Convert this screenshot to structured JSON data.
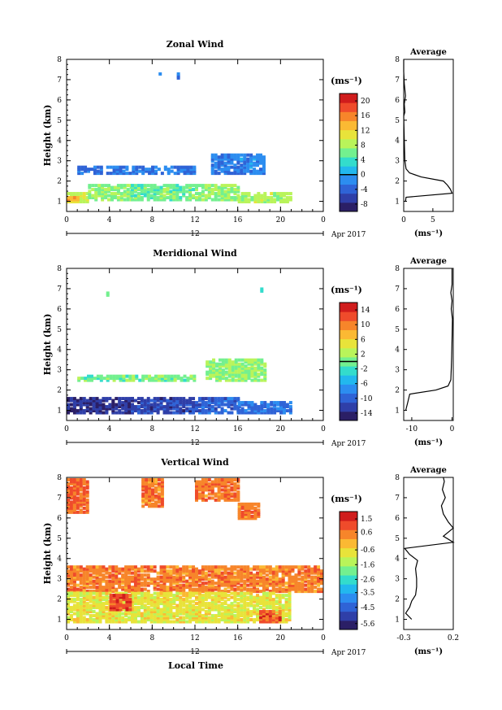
{
  "figure": {
    "xlabel": "Local Time",
    "date_label": "Apr 2017",
    "date_tick": "12"
  },
  "chart_data": [
    {
      "type": "heatmap",
      "title": "Zonal Wind",
      "ylabel": "Height (km)",
      "xlabel": "Local Time",
      "x_ticks": [
        "0",
        "4",
        "8",
        "12",
        "16",
        "20",
        "0"
      ],
      "xlim": [
        0,
        24
      ],
      "y_ticks": [
        "1",
        "2",
        "3",
        "4",
        "5",
        "6",
        "7",
        "8"
      ],
      "ylim": [
        0.5,
        8
      ],
      "colorbar": {
        "label": "(ms⁻¹)",
        "ticks": [
          "-8",
          "-4",
          "0",
          "4",
          "8",
          "12",
          "16",
          "20"
        ],
        "range": [
          -10,
          22
        ],
        "zero_line": 0
      },
      "profile": {
        "title": "Average",
        "xlabel": "(ms⁻¹)",
        "x_ticks": [
          "0",
          "5"
        ],
        "xlim": [
          0,
          8.5
        ],
        "points": [
          [
            0.3,
            1.0
          ],
          [
            0.4,
            1.2
          ],
          [
            8.3,
            1.4
          ],
          [
            8.0,
            1.6
          ],
          [
            7.5,
            1.8
          ],
          [
            6.8,
            2.0
          ],
          [
            3.0,
            2.2
          ],
          [
            1.0,
            2.4
          ],
          [
            0.4,
            2.6
          ],
          [
            0.2,
            3.0
          ],
          [
            0.1,
            4.0
          ],
          [
            0.0,
            5.2
          ],
          [
            0.2,
            5.4
          ],
          [
            0.1,
            5.8
          ],
          [
            0.3,
            6.2
          ],
          [
            0.1,
            6.8
          ],
          [
            0.0,
            7.4
          ],
          [
            0.0,
            8.0
          ]
        ]
      },
      "regions": [
        {
          "x0": 0,
          "x1": 2,
          "y0": 0.9,
          "y1": 1.4,
          "v": 9
        },
        {
          "x0": 0,
          "x1": 1,
          "y0": 0.9,
          "y1": 1.2,
          "v": 13
        },
        {
          "x0": 2,
          "x1": 6,
          "y0": 1.0,
          "y1": 1.8,
          "v": 7
        },
        {
          "x0": 6,
          "x1": 12,
          "y0": 1.0,
          "y1": 1.8,
          "v": 6
        },
        {
          "x0": 12,
          "x1": 16,
          "y0": 1.0,
          "y1": 1.8,
          "v": 7
        },
        {
          "x0": 16,
          "x1": 21,
          "y0": 0.9,
          "y1": 1.4,
          "v": 8
        },
        {
          "x0": 1,
          "x1": 12,
          "y0": 2.3,
          "y1": 2.7,
          "v": -3
        },
        {
          "x0": 13.5,
          "x1": 18.5,
          "y0": 2.3,
          "y1": 3.3,
          "v": -2
        },
        {
          "x0": 8.6,
          "x1": 8.8,
          "y0": 7.2,
          "y1": 7.3,
          "v": -2
        },
        {
          "x0": 10.3,
          "x1": 10.5,
          "y0": 7.0,
          "y1": 7.2,
          "v": -2
        }
      ]
    },
    {
      "type": "heatmap",
      "title": "Meridional Wind",
      "ylabel": "Height (km)",
      "xlabel": "Local Time",
      "x_ticks": [
        "0",
        "4",
        "8",
        "12",
        "16",
        "20",
        "0"
      ],
      "xlim": [
        0,
        24
      ],
      "y_ticks": [
        "1",
        "2",
        "3",
        "4",
        "5",
        "6",
        "7",
        "8"
      ],
      "ylim": [
        0.5,
        8
      ],
      "colorbar": {
        "label": "(ms⁻¹)",
        "ticks": [
          "-14",
          "-10",
          "-6",
          "-2",
          "2",
          "6",
          "10",
          "14"
        ],
        "range": [
          -16,
          16
        ],
        "zero_line": 0
      },
      "profile": {
        "title": "Average",
        "xlabel": "(ms⁻¹)",
        "x_ticks": [
          "-10",
          "0"
        ],
        "xlim": [
          -12,
          0.3
        ],
        "points": [
          [
            -11.5,
            1.0
          ],
          [
            -11.0,
            1.4
          ],
          [
            -10.5,
            1.8
          ],
          [
            -4.0,
            2.0
          ],
          [
            -1.0,
            2.2
          ],
          [
            -0.3,
            2.5
          ],
          [
            -0.2,
            3.0
          ],
          [
            -0.1,
            3.6
          ],
          [
            0.0,
            4.5
          ],
          [
            0.1,
            5.5
          ],
          [
            -0.2,
            6.0
          ],
          [
            0.0,
            6.4
          ],
          [
            -0.3,
            6.8
          ],
          [
            0.0,
            7.2
          ],
          [
            0.0,
            8.0
          ]
        ]
      },
      "regions": [
        {
          "x0": 0,
          "x1": 6,
          "y0": 0.8,
          "y1": 1.6,
          "v": -13
        },
        {
          "x0": 6,
          "x1": 12,
          "y0": 0.8,
          "y1": 1.6,
          "v": -12
        },
        {
          "x0": 12,
          "x1": 16,
          "y0": 0.8,
          "y1": 1.6,
          "v": -10
        },
        {
          "x0": 16,
          "x1": 21,
          "y0": 0.8,
          "y1": 1.4,
          "v": -9
        },
        {
          "x0": 1,
          "x1": 12,
          "y0": 2.4,
          "y1": 2.7,
          "v": 0
        },
        {
          "x0": 13,
          "x1": 18.5,
          "y0": 2.4,
          "y1": 3.5,
          "v": 1
        },
        {
          "x0": 3.7,
          "x1": 3.9,
          "y0": 6.6,
          "y1": 6.7,
          "v": 0
        },
        {
          "x0": 18.1,
          "x1": 18.3,
          "y0": 6.8,
          "y1": 6.9,
          "v": 0
        }
      ]
    },
    {
      "type": "heatmap",
      "title": "Vertical Wind",
      "ylabel": "Height (km)",
      "xlabel": "Local Time",
      "x_ticks": [
        "0",
        "4",
        "8",
        "12",
        "16",
        "20",
        "0"
      ],
      "xlim": [
        0,
        24
      ],
      "y_ticks": [
        "1",
        "2",
        "3",
        "4",
        "5",
        "6",
        "7",
        "8"
      ],
      "ylim": [
        0.5,
        8
      ],
      "colorbar": {
        "label": "(ms⁻¹)",
        "ticks": [
          "-5.6",
          "-4.5",
          "-3.5",
          "-2.6",
          "-1.6",
          "-0.6",
          "0.6",
          "1.5"
        ],
        "range": [
          -6.0,
          2.0
        ]
      },
      "profile": {
        "title": "Average",
        "xlabel": "(ms⁻¹)",
        "x_ticks": [
          "-0.3",
          "0.2"
        ],
        "xlim": [
          -0.3,
          0.2
        ],
        "points": [
          [
            -0.22,
            1.0
          ],
          [
            -0.28,
            1.3
          ],
          [
            -0.24,
            1.6
          ],
          [
            -0.22,
            1.9
          ],
          [
            -0.18,
            2.2
          ],
          [
            -0.17,
            2.6
          ],
          [
            -0.17,
            3.0
          ],
          [
            -0.18,
            3.5
          ],
          [
            -0.16,
            3.9
          ],
          [
            -0.24,
            4.2
          ],
          [
            -0.29,
            4.5
          ],
          [
            0.2,
            4.8
          ],
          [
            0.1,
            5.1
          ],
          [
            0.2,
            5.5
          ],
          [
            0.15,
            5.8
          ],
          [
            0.1,
            6.2
          ],
          [
            0.08,
            6.6
          ],
          [
            0.12,
            7.0
          ],
          [
            0.09,
            7.4
          ],
          [
            0.11,
            7.8
          ],
          [
            0.1,
            8.0
          ]
        ]
      },
      "regions": [
        {
          "x0": 0,
          "x1": 24,
          "y0": 2.3,
          "y1": 3.6,
          "v": 0.5
        },
        {
          "x0": 0,
          "x1": 21,
          "y0": 0.8,
          "y1": 2.3,
          "v": -0.8
        },
        {
          "x0": 4,
          "x1": 6,
          "y0": 1.4,
          "y1": 2.2,
          "v": 1.1
        },
        {
          "x0": 18,
          "x1": 20,
          "y0": 0.8,
          "y1": 1.4,
          "v": 1.0
        },
        {
          "x0": 0,
          "x1": 2,
          "y0": 6.2,
          "y1": 7.8,
          "v": 0.7
        },
        {
          "x0": 7,
          "x1": 9,
          "y0": 6.5,
          "y1": 7.8,
          "v": 0.5
        },
        {
          "x0": 12,
          "x1": 16,
          "y0": 6.8,
          "y1": 7.8,
          "v": 0.6
        },
        {
          "x0": 16,
          "x1": 18,
          "y0": 5.9,
          "y1": 6.6,
          "v": 0.6
        }
      ]
    }
  ]
}
